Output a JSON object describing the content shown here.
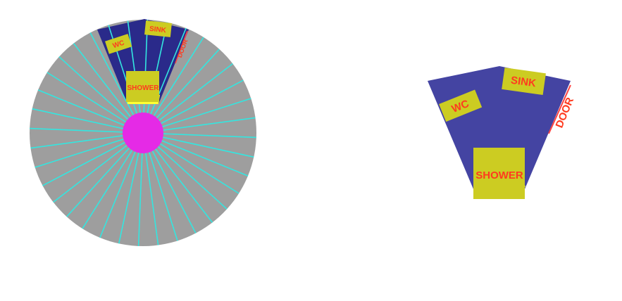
{
  "colors": {
    "background": "#ffffff",
    "disc": "#9e9e9e",
    "spokes": "#33e6e0",
    "hub": "#e52ae6",
    "room": "#4444a2",
    "room_on_disc": "#2a2a8a",
    "fixture": "#cccc22",
    "fixture_highlight": "#ffff33",
    "label_text": "#ff3b1f",
    "door": "#ff4444"
  },
  "overview": {
    "labels": {
      "wc": "WC",
      "sink": "SINK",
      "shower": "SHOWER",
      "door": "DOOR"
    }
  },
  "detail": {
    "labels": {
      "wc": "WC",
      "sink": "SINK",
      "shower": "SHOWER",
      "door": "DOOR"
    }
  }
}
